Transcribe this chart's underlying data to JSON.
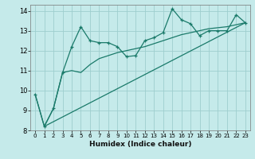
{
  "xlabel": "Humidex (Indice chaleur)",
  "ylabel": "",
  "background_color": "#c5eaea",
  "grid_color": "#9ecece",
  "line_color": "#1a7a6a",
  "xlim": [
    -0.5,
    23.5
  ],
  "ylim": [
    8,
    14.3
  ],
  "xtick_labels": [
    "0",
    "1",
    "2",
    "3",
    "4",
    "5",
    "6",
    "7",
    "8",
    "9",
    "10",
    "11",
    "12",
    "13",
    "14",
    "15",
    "16",
    "17",
    "18",
    "19",
    "20",
    "21",
    "22",
    "23"
  ],
  "xticks": [
    0,
    1,
    2,
    3,
    4,
    5,
    6,
    7,
    8,
    9,
    10,
    11,
    12,
    13,
    14,
    15,
    16,
    17,
    18,
    19,
    20,
    21,
    22,
    23
  ],
  "yticks": [
    8,
    9,
    10,
    11,
    12,
    13,
    14
  ],
  "line1_x": [
    0,
    1,
    2,
    3,
    4,
    5,
    6,
    7,
    8,
    9,
    10,
    11,
    12,
    13,
    14,
    15,
    16,
    17,
    18,
    19,
    20,
    21,
    22,
    23
  ],
  "line1_y": [
    9.8,
    8.2,
    9.1,
    10.9,
    12.2,
    13.2,
    12.5,
    12.4,
    12.4,
    12.2,
    11.7,
    11.75,
    12.5,
    12.65,
    12.9,
    14.1,
    13.55,
    13.35,
    12.75,
    13.0,
    13.0,
    13.0,
    13.8,
    13.4
  ],
  "line2_x": [
    0,
    1,
    2,
    3,
    4,
    5,
    6,
    7,
    8,
    9,
    10,
    11,
    12,
    13,
    14,
    15,
    16,
    17,
    18,
    19,
    20,
    21,
    22,
    23
  ],
  "line2_y": [
    9.8,
    8.2,
    9.1,
    10.9,
    11.0,
    10.9,
    11.3,
    11.6,
    11.75,
    11.9,
    12.0,
    12.1,
    12.2,
    12.35,
    12.5,
    12.65,
    12.8,
    12.9,
    13.0,
    13.1,
    13.15,
    13.2,
    13.3,
    13.4
  ],
  "line3_x": [
    1,
    23
  ],
  "line3_y": [
    8.2,
    13.4
  ]
}
